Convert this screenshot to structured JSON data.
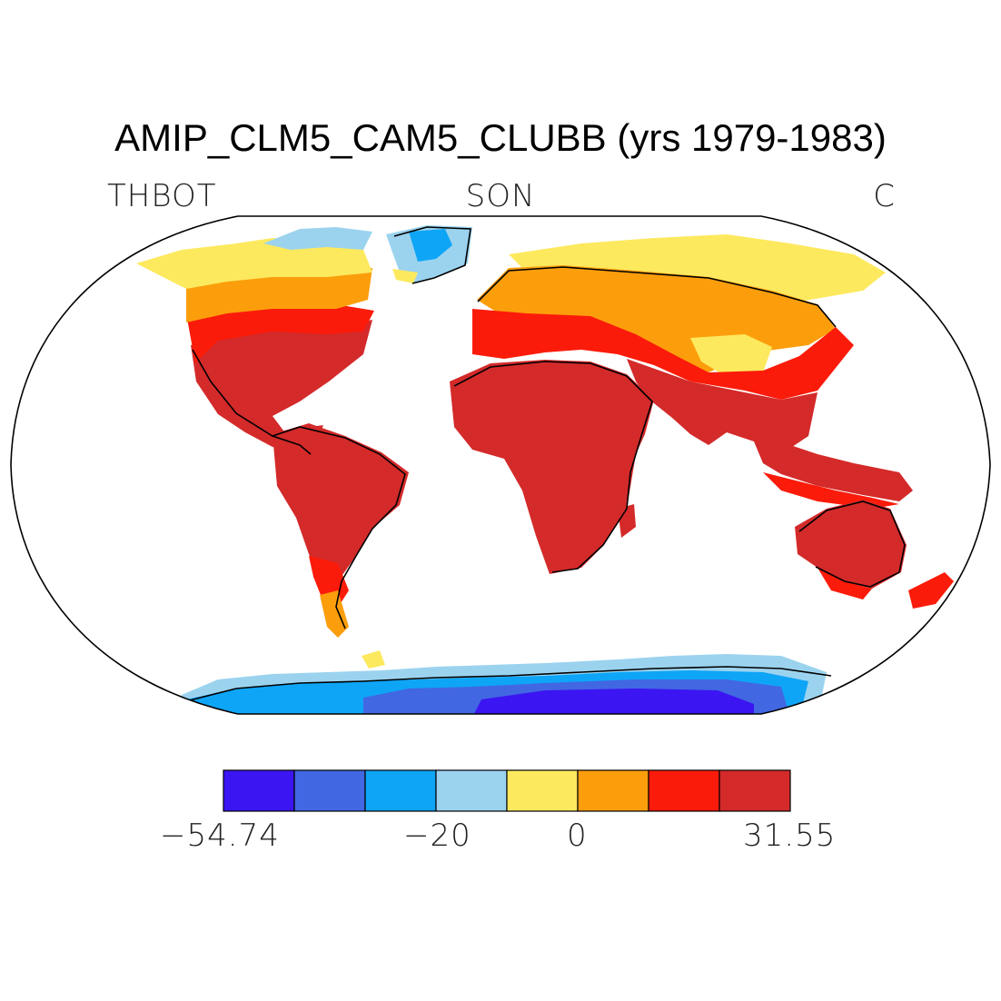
{
  "title": "AMIP_CLM5_CAM5_CLUBB (yrs 1979-1983)",
  "labels": {
    "variable": "THBOT",
    "season": "SON",
    "units": "C"
  },
  "colorbar": {
    "colors": [
      "#3b16f2",
      "#4267e2",
      "#0ea5f7",
      "#9bd3ef",
      "#fde95e",
      "#fc9e0c",
      "#fb1b0a",
      "#d42a2a"
    ],
    "tick_labels": [
      "−54.74",
      "−20",
      "0",
      "31.55"
    ]
  },
  "colors": {
    "coast": "#000000",
    "ocean": "#ffffff"
  }
}
